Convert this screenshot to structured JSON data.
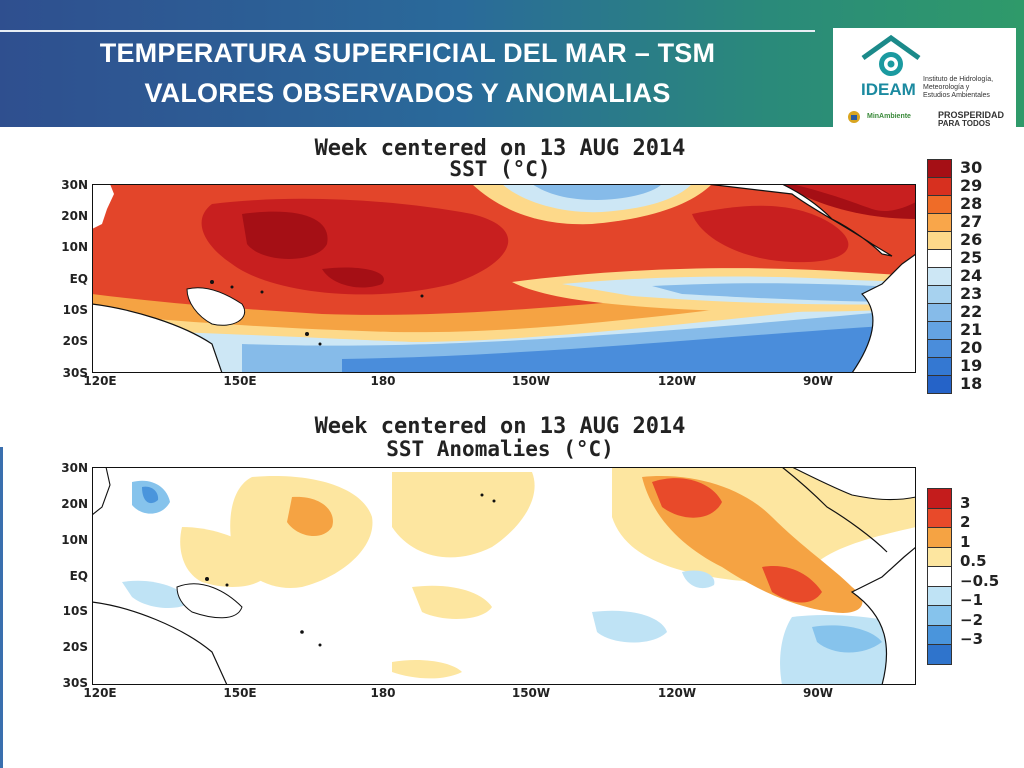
{
  "header": {
    "title_line1": "TEMPERATURA SUPERFICIAL DEL MAR – TSM",
    "title_line2": "VALORES OBSERVADOS Y ANOMALIAS"
  },
  "logo": {
    "acronym": "IDEAM",
    "institute_line1": "Instituto de Hidrología,",
    "institute_line2": "Meteorología y",
    "institute_line3": "Estudios Ambientales",
    "ministry": "MinAmbiente",
    "prosperity_line1": "PROSPERIDAD",
    "prosperity_line2": "PARA TODOS"
  },
  "sst_map": {
    "title_line1": "Week centered on 13 AUG 2014",
    "title_line2": "SST (°C)",
    "lat_labels": [
      "30N",
      "20N",
      "10N",
      "EQ",
      "10S",
      "20S",
      "30S"
    ],
    "lon_labels": [
      "120E",
      "150E",
      "180",
      "150W",
      "120W",
      "90W"
    ],
    "colorbar_labels": [
      "30",
      "29",
      "28",
      "27",
      "26",
      "25",
      "24",
      "23",
      "22",
      "21",
      "20",
      "19",
      "18"
    ],
    "colorbar_colors": [
      "#a50f15",
      "#d7301f",
      "#ef6c28",
      "#f9a64a",
      "#fdd98a",
      "#ffffff",
      "#cde7f5",
      "#a7d2ef",
      "#86bbe9",
      "#64a3e2",
      "#4a8ddb",
      "#3478d2",
      "#2563c8"
    ]
  },
  "anomaly_map": {
    "title_line1": "Week centered on 13 AUG 2014",
    "title_line2": "SST Anomalies (°C)",
    "lat_labels": [
      "30N",
      "20N",
      "10N",
      "EQ",
      "10S",
      "20S",
      "30S"
    ],
    "lon_labels": [
      "120E",
      "150E",
      "180",
      "150W",
      "120W",
      "90W"
    ],
    "colorbar_labels": [
      "3",
      "2",
      "1",
      "0.5",
      "−0.5",
      "−1",
      "−2",
      "−3"
    ],
    "colorbar_colors": [
      "#c41c1c",
      "#e84a2a",
      "#f5a343",
      "#fde6a0",
      "#ffffff",
      "#bfe3f5",
      "#86c3ec",
      "#4a95dc",
      "#2f74cc"
    ]
  }
}
